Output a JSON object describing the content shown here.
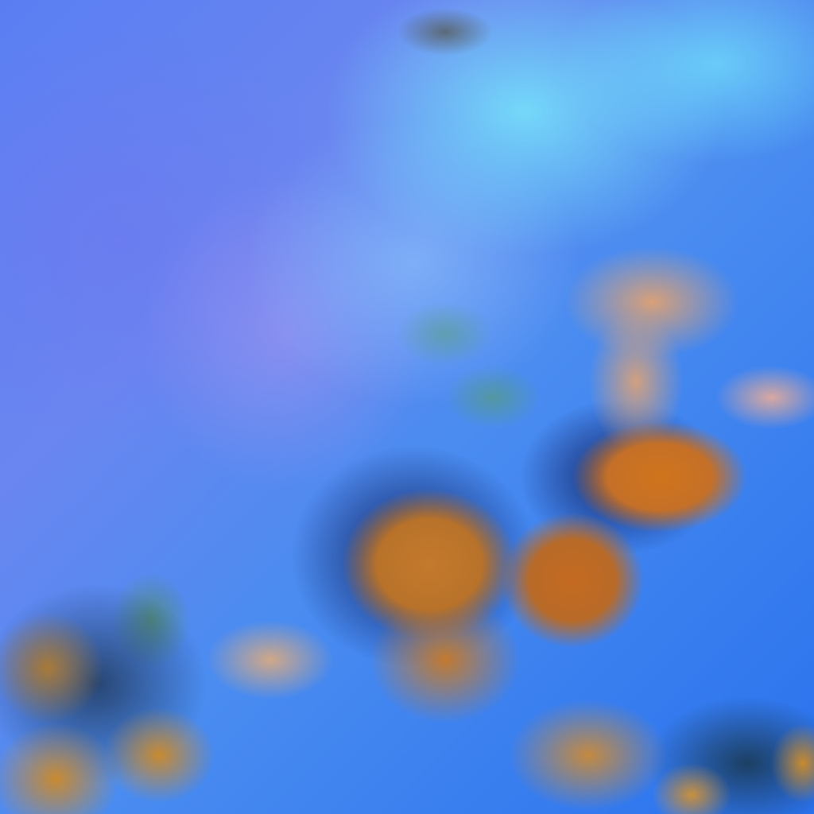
{
  "image": {
    "kind": "false-color satellite imagery",
    "colors": {
      "ocean": "#5a7ef2",
      "land": "#78e6fa",
      "cloud_high": "#c47a2c",
      "cloud_low": "#d8a078",
      "shadow": "#0a1450"
    }
  }
}
